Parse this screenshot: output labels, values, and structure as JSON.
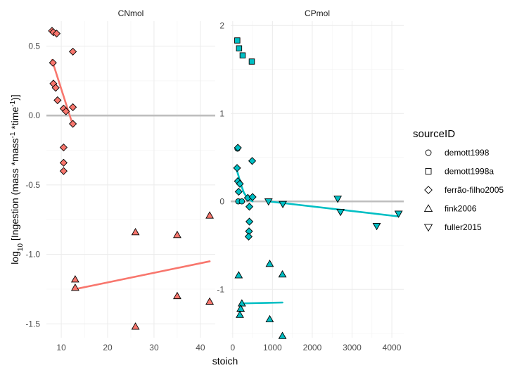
{
  "colors": {
    "CNmol": "#F8766D",
    "CPmol": "#00BFC4",
    "zero_line": "#bebebe",
    "point_stroke": "#000000"
  },
  "chart_data": {
    "type": "scatter",
    "xlabel": "stoich",
    "ylabel": "log10 [Ingestion (mass * mass^-1 * time^-1)]",
    "ylabel_parts": {
      "pre": "log",
      "sub": "10",
      "main": " [Ingestion (mass *mass",
      "sup1": "-1",
      "mid": " *time",
      "sup2": "-1",
      "post": ")]"
    },
    "horizontal_reference_line": 0,
    "grid": true,
    "legend": {
      "title": "sourceID",
      "position": "right",
      "entries": [
        {
          "label": "demott1998",
          "shape": "circle"
        },
        {
          "label": "demott1998a",
          "shape": "square"
        },
        {
          "label": "ferrão-filho2005",
          "shape": "diamond"
        },
        {
          "label": "fink2006",
          "shape": "triangle-up"
        },
        {
          "label": "fuller2015",
          "shape": "triangle-down"
        }
      ]
    },
    "panels": [
      {
        "name": "CNmol",
        "color_key": "CNmol",
        "xlim": [
          6.8,
          43.2
        ],
        "ylim": [
          -1.6,
          0.68
        ],
        "xticks": [
          10,
          20,
          30,
          40
        ],
        "xtick_labels": [
          "10",
          "20",
          "30",
          "40"
        ],
        "yticks": [
          -1.5,
          -1.0,
          -0.5,
          0.0,
          0.5
        ],
        "ytick_labels": [
          "-1.5",
          "-1.0",
          "-0.5",
          "0.0",
          "0.5"
        ],
        "points": [
          {
            "source": "ferrão-filho2005",
            "x": 8.0,
            "y": 0.61
          },
          {
            "source": "ferrão-filho2005",
            "x": 8.3,
            "y": 0.6
          },
          {
            "source": "ferrão-filho2005",
            "x": 9.0,
            "y": 0.59
          },
          {
            "source": "ferrão-filho2005",
            "x": 12.5,
            "y": 0.46
          },
          {
            "source": "ferrão-filho2005",
            "x": 8.2,
            "y": 0.38
          },
          {
            "source": "ferrão-filho2005",
            "x": 8.3,
            "y": 0.23
          },
          {
            "source": "ferrão-filho2005",
            "x": 8.8,
            "y": 0.2
          },
          {
            "source": "ferrão-filho2005",
            "x": 9.2,
            "y": 0.11
          },
          {
            "source": "ferrão-filho2005",
            "x": 10.5,
            "y": 0.05
          },
          {
            "source": "ferrão-filho2005",
            "x": 11.0,
            "y": 0.03
          },
          {
            "source": "ferrão-filho2005",
            "x": 12.5,
            "y": 0.06
          },
          {
            "source": "ferrão-filho2005",
            "x": 12.5,
            "y": -0.06
          },
          {
            "source": "ferrão-filho2005",
            "x": 10.5,
            "y": -0.23
          },
          {
            "source": "ferrão-filho2005",
            "x": 10.5,
            "y": -0.34
          },
          {
            "source": "ferrão-filho2005",
            "x": 10.5,
            "y": -0.4
          },
          {
            "source": "fink2006",
            "x": 26.0,
            "y": -0.84
          },
          {
            "source": "fink2006",
            "x": 35.0,
            "y": -0.86
          },
          {
            "source": "fink2006",
            "x": 42.0,
            "y": -0.72
          },
          {
            "source": "fink2006",
            "x": 13.0,
            "y": -1.18
          },
          {
            "source": "fink2006",
            "x": 13.0,
            "y": -1.24
          },
          {
            "source": "fink2006",
            "x": 35.0,
            "y": -1.3
          },
          {
            "source": "fink2006",
            "x": 42.0,
            "y": -1.34
          },
          {
            "source": "fink2006",
            "x": 26.0,
            "y": -1.52
          }
        ],
        "fit_lines": [
          {
            "x": [
              8.0,
              12.5
            ],
            "y": [
              0.4,
              -0.07
            ]
          },
          {
            "x": [
              13.0,
              42.0
            ],
            "y": [
              -1.25,
              -1.05
            ]
          }
        ]
      },
      {
        "name": "CPmol",
        "color_key": "CPmol",
        "xlim": [
          -50,
          4300
        ],
        "ylim": [
          -1.55,
          2.05
        ],
        "xticks": [
          0,
          1000,
          2000,
          3000,
          4000
        ],
        "xtick_labels": [
          "0",
          "1000",
          "2000",
          "3000",
          "4000"
        ],
        "yticks": [
          -1,
          0,
          1,
          2
        ],
        "ytick_labels": [
          "-1",
          "0",
          "1",
          "2"
        ],
        "points": [
          {
            "source": "demott1998a",
            "x": 115,
            "y": 1.83
          },
          {
            "source": "demott1998a",
            "x": 160,
            "y": 1.74
          },
          {
            "source": "demott1998a",
            "x": 250,
            "y": 1.66
          },
          {
            "source": "demott1998a",
            "x": 480,
            "y": 1.59
          },
          {
            "source": "demott1998",
            "x": 120,
            "y": 0.6
          },
          {
            "source": "demott1998",
            "x": 140,
            "y": 0.0
          },
          {
            "source": "demott1998",
            "x": 230,
            "y": 0.0
          },
          {
            "source": "ferrão-filho2005",
            "x": 130,
            "y": 0.61
          },
          {
            "source": "ferrão-filho2005",
            "x": 490,
            "y": 0.46
          },
          {
            "source": "ferrão-filho2005",
            "x": 110,
            "y": 0.38
          },
          {
            "source": "ferrão-filho2005",
            "x": 130,
            "y": 0.23
          },
          {
            "source": "ferrão-filho2005",
            "x": 180,
            "y": 0.2
          },
          {
            "source": "ferrão-filho2005",
            "x": 150,
            "y": 0.11
          },
          {
            "source": "ferrão-filho2005",
            "x": 380,
            "y": 0.04
          },
          {
            "source": "ferrão-filho2005",
            "x": 500,
            "y": 0.05
          },
          {
            "source": "ferrão-filho2005",
            "x": 420,
            "y": -0.06
          },
          {
            "source": "ferrão-filho2005",
            "x": 420,
            "y": -0.23
          },
          {
            "source": "ferrão-filho2005",
            "x": 410,
            "y": -0.34
          },
          {
            "source": "ferrão-filho2005",
            "x": 400,
            "y": -0.4
          },
          {
            "source": "fuller2015",
            "x": 900,
            "y": 0.0
          },
          {
            "source": "fuller2015",
            "x": 1260,
            "y": -0.03
          },
          {
            "source": "fuller2015",
            "x": 2640,
            "y": 0.03
          },
          {
            "source": "fuller2015",
            "x": 2710,
            "y": -0.12
          },
          {
            "source": "fuller2015",
            "x": 3620,
            "y": -0.28
          },
          {
            "source": "fuller2015",
            "x": 4170,
            "y": -0.14
          },
          {
            "source": "fink2006",
            "x": 150,
            "y": -0.84
          },
          {
            "source": "fink2006",
            "x": 930,
            "y": -0.71
          },
          {
            "source": "fink2006",
            "x": 1250,
            "y": -0.83
          },
          {
            "source": "fink2006",
            "x": 230,
            "y": -1.16
          },
          {
            "source": "fink2006",
            "x": 200,
            "y": -1.22
          },
          {
            "source": "fink2006",
            "x": 180,
            "y": -1.29
          },
          {
            "source": "fink2006",
            "x": 930,
            "y": -1.34
          },
          {
            "source": "fink2006",
            "x": 1250,
            "y": -1.53
          }
        ],
        "fit_lines": [
          {
            "x": [
              100,
              140,
              200,
              280,
              380,
              500
            ],
            "y": [
              0.36,
              0.3,
              0.2,
              0.1,
              0.03,
              0.0
            ]
          },
          {
            "x": [
              900,
              4150
            ],
            "y": [
              0.0,
              -0.17
            ]
          },
          {
            "x": [
              200,
              1250
            ],
            "y": [
              -1.16,
              -1.15
            ]
          }
        ]
      }
    ]
  }
}
